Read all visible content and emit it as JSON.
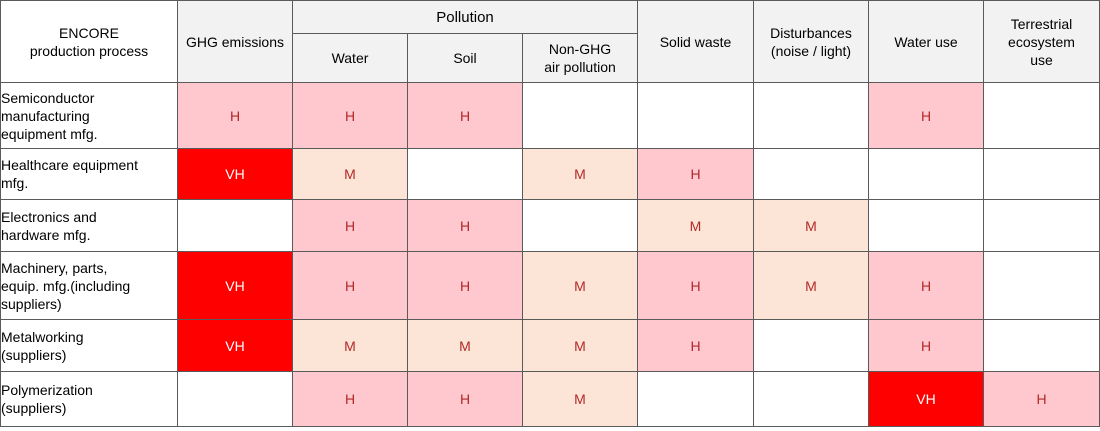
{
  "header": {
    "corner": "ENCORE\nproduction process",
    "ghg": "GHG emissions",
    "pollution_group": "Pollution",
    "water": "Water",
    "soil": "Soil",
    "non_ghg": "Non-GHG\nair pollution",
    "solid_waste": "Solid waste",
    "disturbances": "Disturbances\n(noise / light)",
    "water_use": "Water use",
    "terrestrial": "Terrestrial\necosystem\nuse"
  },
  "level_colors": {
    "VH": "#ff0000",
    "H": "#ffc7ce",
    "M": "#fce4d6",
    "empty": "#ffffff"
  },
  "rows": [
    {
      "process": "Semiconductor\nmanufacturing\nequipment mfg.",
      "cells": [
        "H",
        "H",
        "H",
        "",
        "",
        "",
        "H",
        ""
      ]
    },
    {
      "process": "Healthcare equipment\nmfg.",
      "cells": [
        "VH",
        "M",
        "",
        "M",
        "H",
        "",
        "",
        ""
      ]
    },
    {
      "process": "Electronics and\nhardware mfg.",
      "cells": [
        "",
        "H",
        "H",
        "",
        "M",
        "M",
        "",
        ""
      ]
    },
    {
      "process": "Machinery, parts,\nequip. mfg.(including\nsuppliers)",
      "cells": [
        "VH",
        "H",
        "H",
        "M",
        "H",
        "M",
        "H",
        ""
      ]
    },
    {
      "process": "Metalworking\n(suppliers)",
      "cells": [
        "VH",
        "M",
        "M",
        "M",
        "H",
        "",
        "H",
        ""
      ]
    },
    {
      "process": "Polymerization\n(suppliers)",
      "cells": [
        "",
        "H",
        "H",
        "M",
        "",
        "",
        "VH",
        "H"
      ]
    }
  ]
}
